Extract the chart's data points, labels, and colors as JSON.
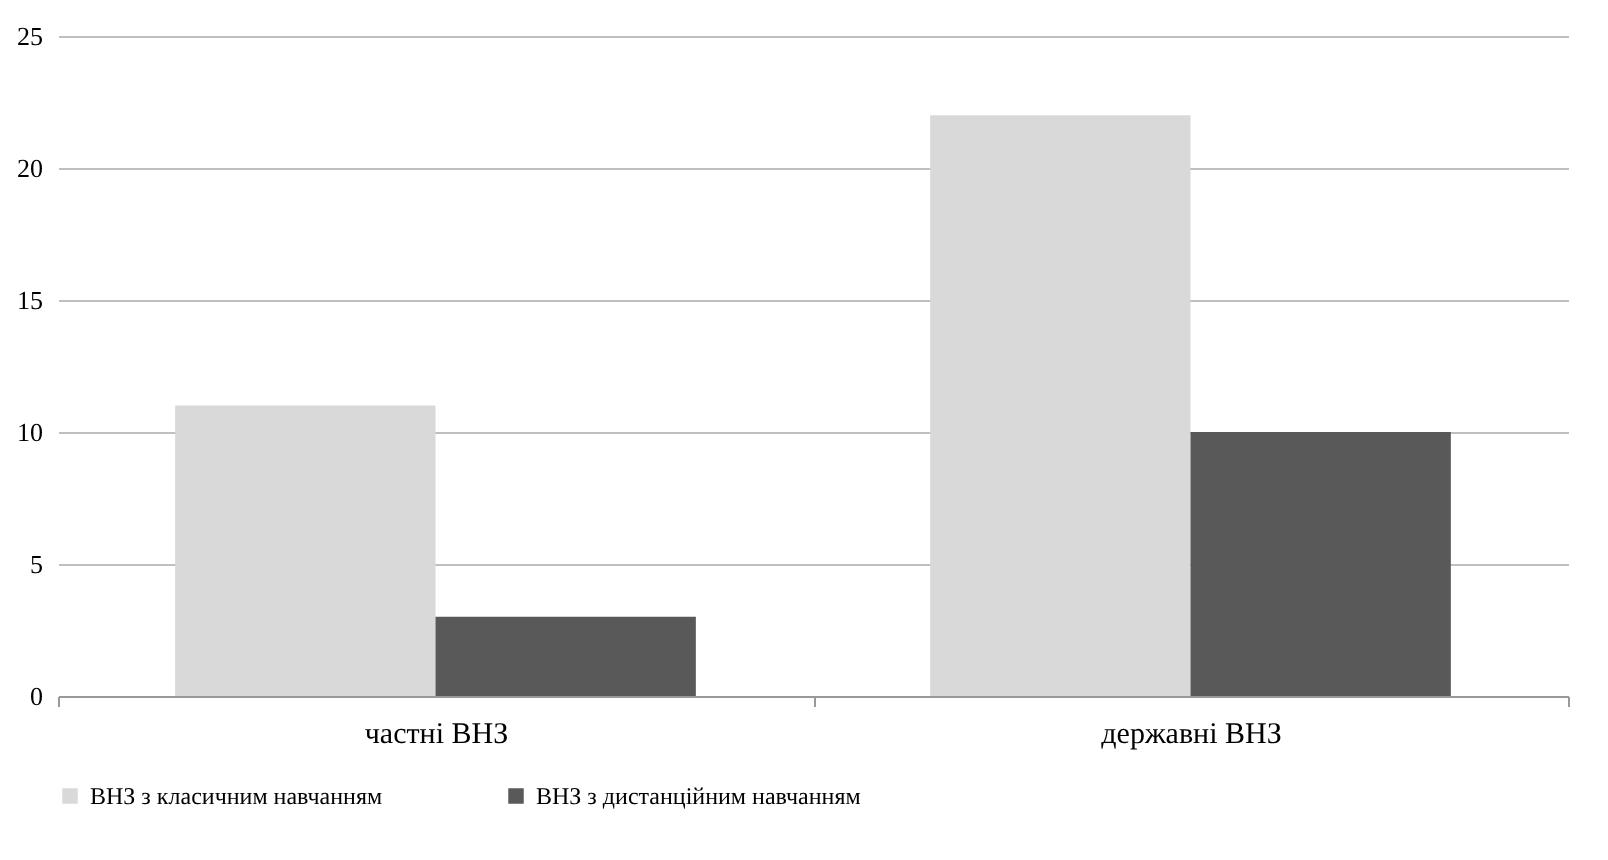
{
  "chart_data": {
    "type": "bar",
    "categories": [
      "частні ВНЗ",
      "державні ВНЗ"
    ],
    "series": [
      {
        "name": "ВНЗ з класичним навчанням",
        "color": "#d9d9d9",
        "values": [
          11,
          22
        ]
      },
      {
        "name": "ВНЗ з дистанційним навчанням",
        "color": "#595959",
        "values": [
          3,
          10
        ]
      }
    ],
    "ylim": [
      0,
      25
    ],
    "yticks": [
      0,
      5,
      10,
      15,
      20,
      25
    ],
    "grid": "y",
    "legend": "bottom"
  }
}
